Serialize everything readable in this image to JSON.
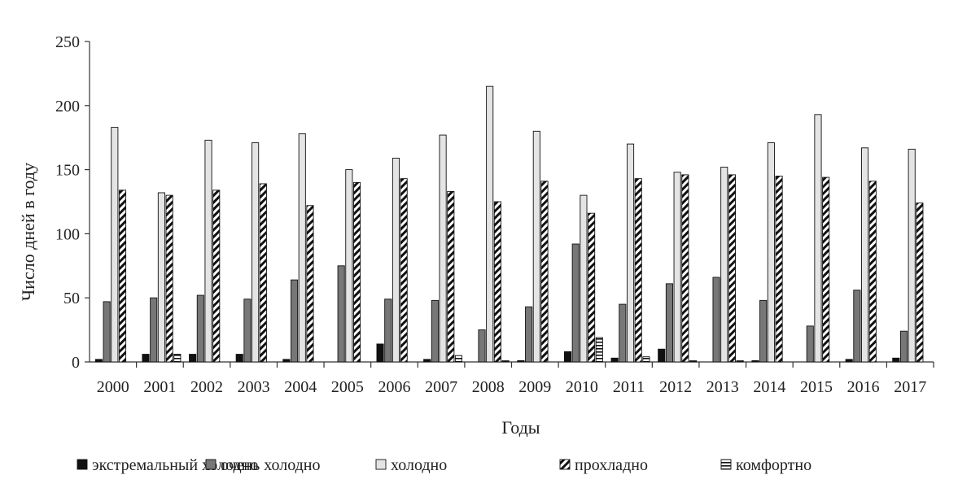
{
  "chart_data": {
    "type": "bar",
    "title": "",
    "xlabel": "Годы",
    "ylabel": "Число дней в году",
    "ylim": [
      0,
      250
    ],
    "yticks": [
      0,
      50,
      100,
      150,
      200,
      250
    ],
    "grid": false,
    "legend_position": "bottom",
    "categories": [
      "2000",
      "2001",
      "2002",
      "2003",
      "2004",
      "2005",
      "2006",
      "2007",
      "2008",
      "2009",
      "2010",
      "2011",
      "2012",
      "2013",
      "2014",
      "2015",
      "2016",
      "2017"
    ],
    "series": [
      {
        "name": "экстремальный холодно",
        "pattern": "solid-black",
        "values": [
          2,
          6,
          6,
          6,
          2,
          0,
          14,
          2,
          0,
          1,
          8,
          3,
          10,
          0,
          1,
          0,
          2,
          3
        ]
      },
      {
        "name": "очень холодно",
        "pattern": "solid-gray",
        "values": [
          47,
          50,
          52,
          49,
          64,
          75,
          49,
          48,
          25,
          43,
          92,
          45,
          61,
          66,
          48,
          28,
          56,
          24
        ]
      },
      {
        "name": "холодно",
        "pattern": "light-gray",
        "values": [
          183,
          132,
          173,
          171,
          178,
          150,
          159,
          177,
          215,
          180,
          130,
          170,
          148,
          152,
          171,
          193,
          167,
          166
        ]
      },
      {
        "name": "прохладно",
        "pattern": "diagonal-hatch",
        "values": [
          134,
          130,
          134,
          139,
          122,
          140,
          143,
          133,
          125,
          141,
          116,
          143,
          146,
          146,
          145,
          144,
          141,
          124
        ]
      },
      {
        "name": "комфортно",
        "pattern": "horizontal-hatch",
        "values": [
          0,
          6,
          0,
          0,
          0,
          0,
          0,
          5,
          1,
          0,
          19,
          4,
          1,
          1,
          0,
          0,
          0,
          0
        ]
      }
    ]
  }
}
